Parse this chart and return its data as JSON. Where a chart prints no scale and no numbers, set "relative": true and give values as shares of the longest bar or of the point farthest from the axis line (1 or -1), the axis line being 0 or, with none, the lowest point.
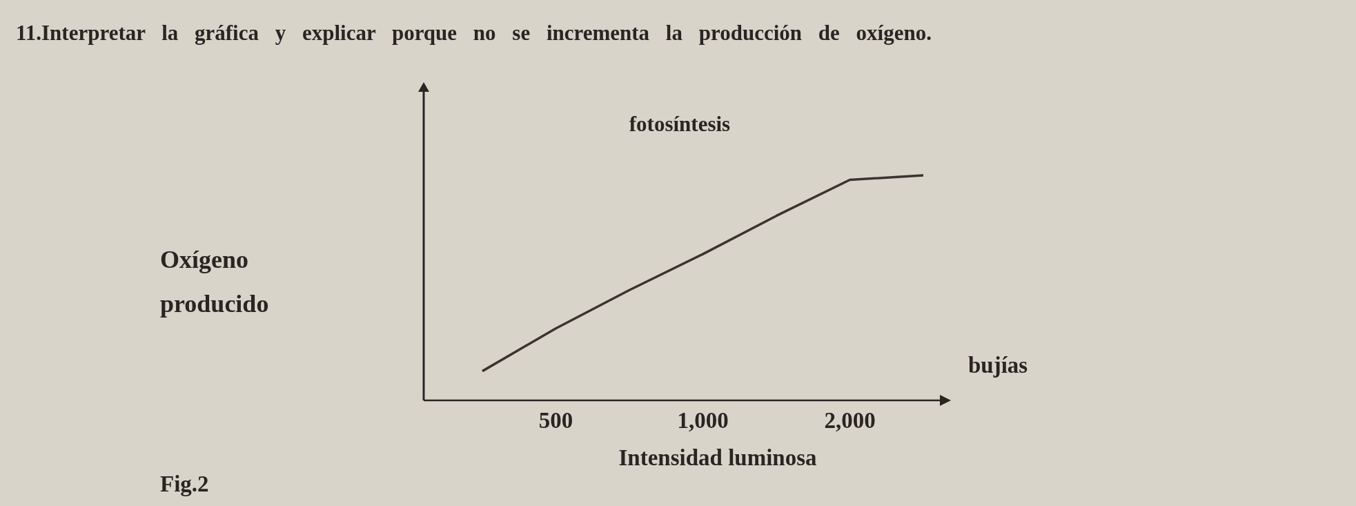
{
  "chart_data": {
    "type": "line",
    "title": "11.Interpretar la gráfica y explicar porque no se incrementa la producción de oxígeno.",
    "xlabel": "Intensidad luminosa",
    "annotations": [
      "bujías",
      "Fig.2",
      "Oxígeno producido"
    ],
    "categories": [
      null,
      "500",
      null,
      "1,000",
      null,
      "2,000",
      null
    ],
    "relative": true,
    "marker": "none",
    "line_style": "solid",
    "series": [
      {
        "name": "fotosíntesis",
        "color": "#3a3330",
        "values": [
          0.13,
          0.32,
          0.49,
          0.65,
          0.82,
          0.98,
          1.0
        ]
      }
    ]
  }
}
